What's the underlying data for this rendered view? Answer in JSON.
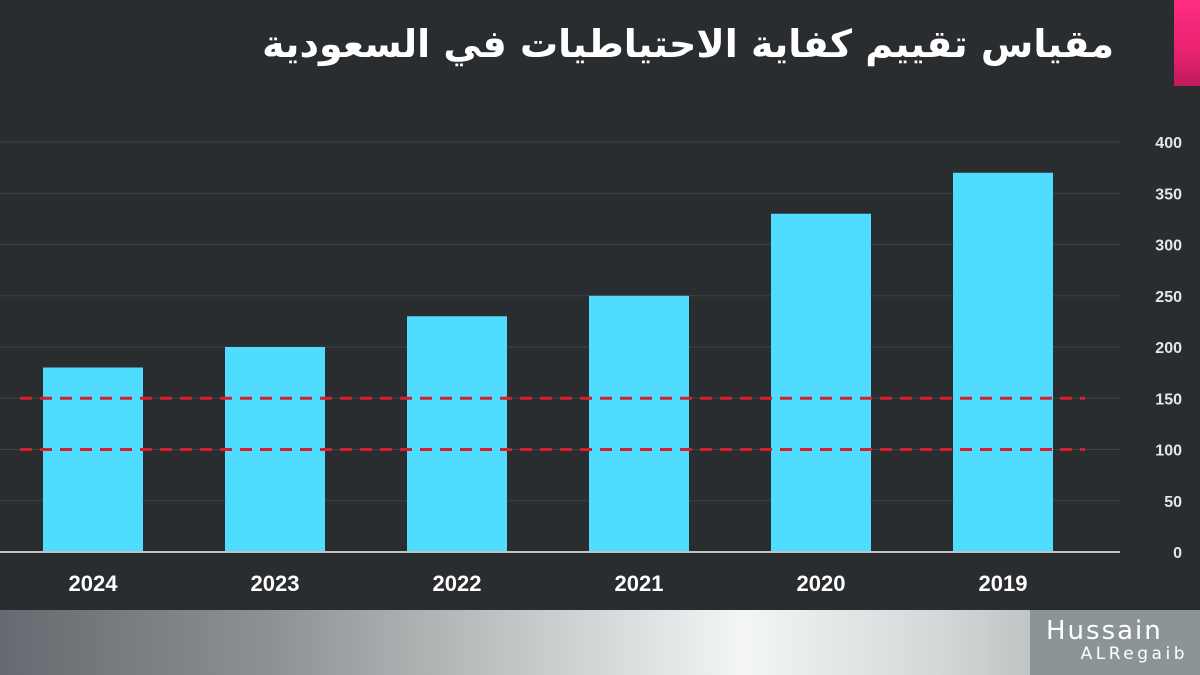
{
  "title": "مقياس تقييم كفاية الاحتياطيات في السعودية",
  "logo": {
    "line1": "Hussain",
    "line2": "ALRegaib"
  },
  "colors": {
    "background": "#2a2d30",
    "bar": "#4fdcfe",
    "grid": "#3d4145",
    "reference_line": "#d4202c",
    "accent": "#e8236e",
    "tick_text": "#e6e6e6"
  },
  "chart_data": {
    "type": "bar",
    "title": "مقياس تقييم كفاية الاحتياطيات في السعودية",
    "xlabel": "",
    "ylabel": "",
    "categories": [
      "2024",
      "2023",
      "2022",
      "2021",
      "2020",
      "2019"
    ],
    "values": [
      180,
      200,
      230,
      250,
      330,
      370
    ],
    "ylim": [
      0,
      400
    ],
    "yticks": [
      0,
      50,
      100,
      150,
      200,
      250,
      300,
      350,
      400
    ],
    "y_axis_side": "right",
    "grid": true,
    "reference_lines": [
      {
        "value": 150,
        "style": "dashed"
      },
      {
        "value": 100,
        "style": "dashed"
      }
    ]
  }
}
